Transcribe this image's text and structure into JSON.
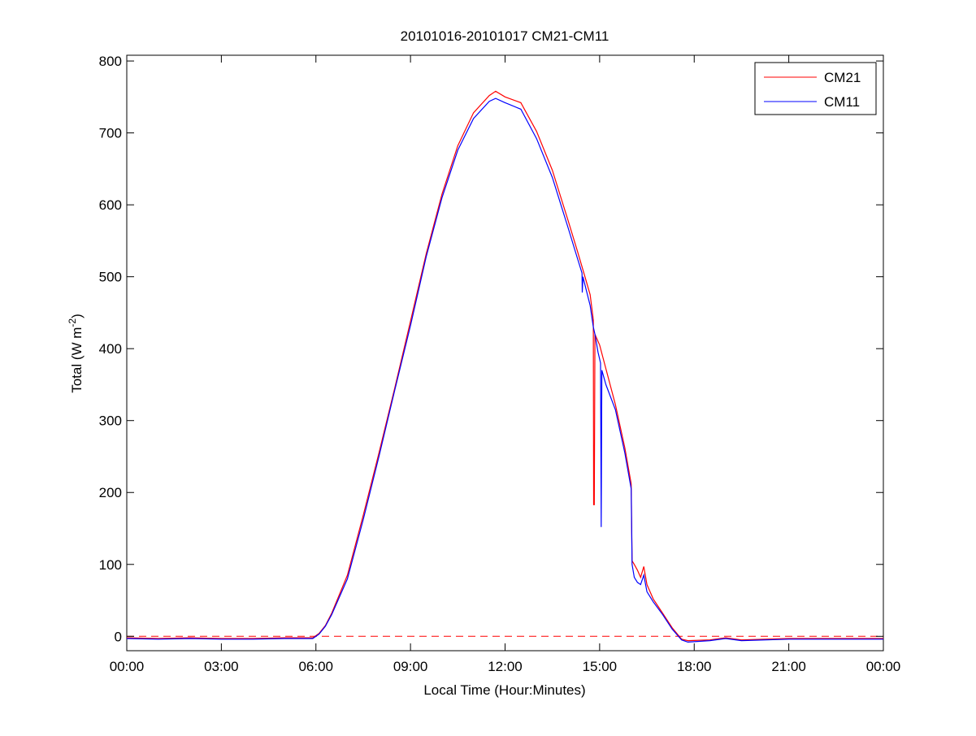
{
  "chart_data": {
    "type": "line",
    "title": "20101016-20101017 CM21-CM11",
    "xlabel": "Local Time (Hour:Minutes)",
    "ylabel_main": "Total (W m",
    "ylabel_sup": "-2",
    "ylabel_end": ")",
    "xlim": [
      0,
      24
    ],
    "ylim": [
      -20,
      808
    ],
    "xticks": [
      0,
      3,
      6,
      9,
      12,
      15,
      18,
      21,
      24
    ],
    "xtick_labels": [
      "00:00",
      "03:00",
      "06:00",
      "09:00",
      "12:00",
      "15:00",
      "18:00",
      "21:00",
      "00:00"
    ],
    "yticks": [
      0,
      100,
      200,
      300,
      400,
      500,
      600,
      700,
      800
    ],
    "ytick_labels": [
      "0",
      "100",
      "200",
      "300",
      "400",
      "500",
      "600",
      "700",
      "800"
    ],
    "grid": false,
    "legend_position": "top-right",
    "reference_line": {
      "y": 0,
      "style": "dashed",
      "color": "#ff0000"
    },
    "series": [
      {
        "name": "CM21",
        "color": "#ff0000",
        "x": [
          0,
          1,
          2,
          3,
          4,
          5,
          5.9,
          6.1,
          6.3,
          6.5,
          7,
          7.5,
          8,
          8.5,
          9,
          9.5,
          10,
          10.5,
          11,
          11.5,
          11.7,
          12,
          12.5,
          13,
          13.5,
          14,
          14.3,
          14.5,
          14.7,
          14.8,
          14.81,
          14.83,
          14.85,
          15,
          15.2,
          15.5,
          15.8,
          16,
          16.03,
          16.1,
          16.2,
          16.3,
          16.4,
          16.5,
          16.7,
          17,
          17.3,
          17.6,
          17.8,
          18.5,
          19,
          19.5,
          21,
          24
        ],
        "y": [
          -2,
          -3,
          -2,
          -3,
          -3,
          -2,
          -2,
          4,
          15,
          32,
          85,
          168,
          255,
          345,
          438,
          532,
          615,
          682,
          728,
          752,
          758,
          750,
          742,
          702,
          648,
          578,
          535,
          505,
          475,
          440,
          183,
          183,
          420,
          405,
          372,
          322,
          262,
          212,
          105,
          100,
          92,
          82,
          97,
          72,
          52,
          32,
          12,
          -4,
          -6,
          -5,
          -2,
          -5,
          -3,
          -3
        ]
      },
      {
        "name": "CM11",
        "color": "#0000ff",
        "x": [
          0,
          1,
          2,
          3,
          4,
          5,
          5.9,
          6.1,
          6.3,
          6.5,
          7,
          7.5,
          8,
          8.5,
          9,
          9.5,
          10,
          10.5,
          11,
          11.5,
          11.7,
          12,
          12.5,
          13,
          13.5,
          14,
          14.3,
          14.44,
          14.45,
          14.47,
          14.7,
          14.8,
          14.85,
          14.95,
          15.03,
          15.05,
          15.07,
          15.2,
          15.5,
          15.8,
          16,
          16.03,
          16.1,
          16.2,
          16.3,
          16.4,
          16.5,
          16.7,
          17,
          17.3,
          17.6,
          17.8,
          18.5,
          19,
          19.5,
          21,
          24
        ],
        "y": [
          -3,
          -4,
          -3,
          -4,
          -4,
          -3,
          -3,
          3,
          14,
          30,
          80,
          162,
          250,
          342,
          432,
          528,
          610,
          676,
          720,
          744,
          748,
          742,
          733,
          692,
          638,
          568,
          525,
          505,
          478,
          500,
          460,
          430,
          420,
          395,
          380,
          152,
          370,
          350,
          315,
          255,
          205,
          100,
          82,
          75,
          72,
          85,
          62,
          48,
          30,
          10,
          -5,
          -8,
          -6,
          -3,
          -6,
          -4,
          -4
        ]
      }
    ]
  }
}
